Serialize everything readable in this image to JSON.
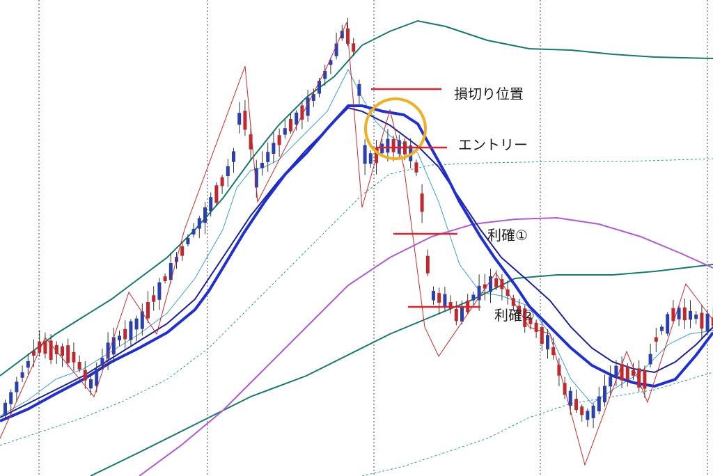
{
  "chart_data": {
    "type": "candlestick",
    "title": "",
    "grid": true,
    "colors": {
      "up": "#2a3fb0",
      "down": "#c0282d",
      "zigzag": "#cc2a2a",
      "ma_thick": "#1f2fd6",
      "ma_mid": "#1a1f9e",
      "ma_thin": "#3ba0d8",
      "band_teal": "#127a6e",
      "band_dashed": "#17a090",
      "ma_purple": "#b257d6",
      "annotation_line": "#e0202a",
      "circle": "#f0b020"
    },
    "annotations": [
      {
        "id": "stop",
        "label": "損切り位置"
      },
      {
        "id": "entry",
        "label": "エントリー"
      },
      {
        "id": "tp1",
        "label": "利確①"
      },
      {
        "id": "tp2",
        "label": "利確②"
      }
    ]
  }
}
